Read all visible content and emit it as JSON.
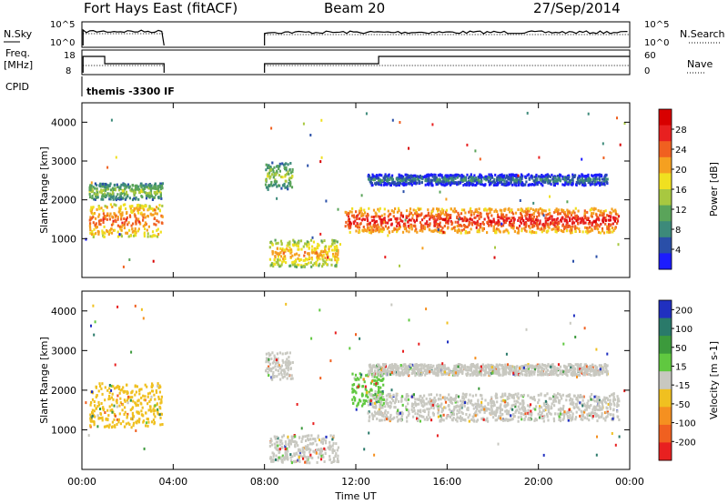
{
  "header": {
    "title": "Fort Hays East (fitACF)",
    "beam": "Beam 20",
    "date": "27/Sep/2014"
  },
  "summary_panels": {
    "nsky_label": "N.Sky",
    "nsky_ticks": [
      "10^5",
      "10^0"
    ],
    "nsearch_label": "N.Search",
    "nsearch_ticks": [
      "10^5",
      "10^0"
    ],
    "freq_label_line1": "Freq.",
    "freq_label_line2": "[MHz]",
    "freq_ticks": [
      "18",
      "8"
    ],
    "nave_label": "Nave",
    "nave_ticks": [
      "60",
      "0"
    ],
    "cpid_label": "CPID",
    "cpid_text": "themis -3300 IF"
  },
  "chart_data": [
    {
      "type": "heatmap",
      "name": "power",
      "ylabel": "Slant Range [km]",
      "xlabel": "Time UT",
      "x_ticks": [
        "00:00",
        "04:00",
        "08:00",
        "12:00",
        "16:00",
        "20:00",
        "00:00"
      ],
      "y_ticks": [
        1000,
        2000,
        3000,
        4000
      ],
      "ylim": [
        0,
        4500
      ],
      "xlim_hours": [
        0,
        24
      ],
      "colorbar_label": "Power [dB]",
      "colorbar_ticks": [
        4,
        8,
        12,
        16,
        20,
        24,
        28
      ],
      "colorbar_colors": [
        "#1c1cff",
        "#2a4fa8",
        "#3d8a7a",
        "#5aa45a",
        "#a8c840",
        "#f0e020",
        "#f5a020",
        "#f06020",
        "#e82020",
        "#d80000"
      ],
      "data_gaps_hours": [
        [
          3.6,
          8.0
        ]
      ],
      "regions": [
        {
          "t_start": 0.3,
          "t_end": 3.5,
          "range_center": 1450,
          "range_width": 600,
          "power": 24
        },
        {
          "t_start": 0.3,
          "t_end": 3.5,
          "range_center": 2200,
          "range_width": 300,
          "power": 14
        },
        {
          "t_start": 8.0,
          "t_end": 9.2,
          "range_center": 2600,
          "range_width": 500,
          "power": 14
        },
        {
          "t_start": 8.2,
          "t_end": 11.2,
          "range_center": 600,
          "range_width": 500,
          "power": 22
        },
        {
          "t_start": 11.5,
          "t_end": 23.5,
          "range_center": 1450,
          "range_width": 450,
          "power": 26
        },
        {
          "t_start": 12.5,
          "t_end": 23.0,
          "range_center": 2500,
          "range_width": 200,
          "power": 10
        }
      ]
    },
    {
      "type": "heatmap",
      "name": "velocity",
      "ylabel": "Slant Range [km]",
      "xlabel": "Time UT",
      "x_ticks": [
        "00:00",
        "04:00",
        "08:00",
        "12:00",
        "16:00",
        "20:00",
        "00:00"
      ],
      "y_ticks": [
        1000,
        2000,
        3000,
        4000
      ],
      "ylim": [
        0,
        4500
      ],
      "xlim_hours": [
        0,
        24
      ],
      "colorbar_label": "Velocity [m s-1]",
      "colorbar_ticks": [
        200,
        100,
        50,
        15,
        -15,
        -50,
        -100,
        -200
      ],
      "colorbar_colors": [
        "#2030c0",
        "#2a7a6a",
        "#3c9a3c",
        "#60c840",
        "#c8c8c0",
        "#f0c020",
        "#f59020",
        "#f06020",
        "#e82020"
      ],
      "data_gaps_hours": [
        [
          3.6,
          8.0
        ]
      ],
      "regions": [
        {
          "t_start": 0.3,
          "t_end": 3.5,
          "range_center": 1600,
          "range_width": 800,
          "velocity": -20
        },
        {
          "t_start": 8.0,
          "t_end": 9.2,
          "range_center": 2600,
          "range_width": 500,
          "velocity": 0
        },
        {
          "t_start": 8.2,
          "t_end": 11.2,
          "range_center": 500,
          "range_width": 500,
          "velocity": 0
        },
        {
          "t_start": 11.8,
          "t_end": 13.2,
          "range_center": 2000,
          "range_width": 600,
          "velocity": 40
        },
        {
          "t_start": 12.5,
          "t_end": 23.5,
          "range_center": 1550,
          "range_width": 500,
          "velocity": 0
        },
        {
          "t_start": 12.5,
          "t_end": 23.0,
          "range_center": 2500,
          "range_width": 200,
          "velocity": 0
        }
      ]
    }
  ],
  "colors": {
    "gap_white": "#ffffff",
    "ground_gray": "#c8c8c0"
  }
}
